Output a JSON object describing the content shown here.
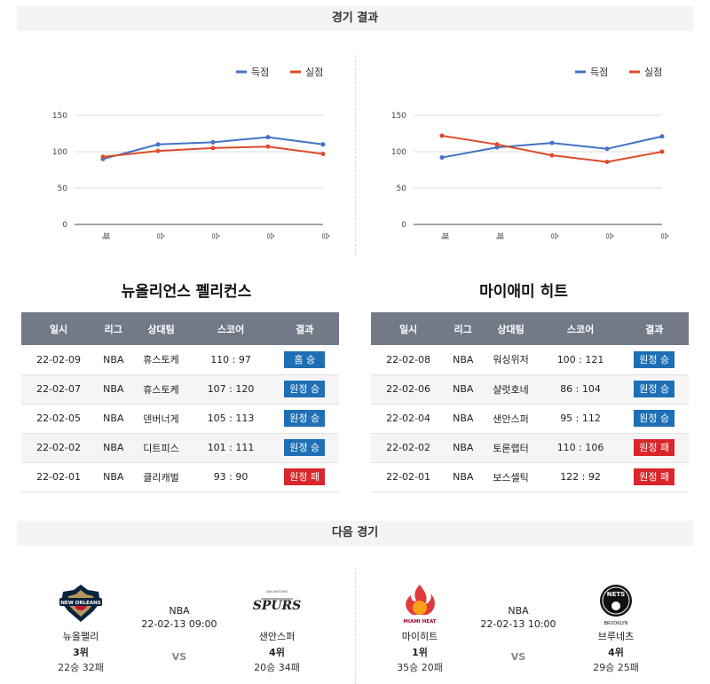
{
  "sections": {
    "results": "경기 결과",
    "next": "다음 경기"
  },
  "chart_legend": {
    "scored": "득점",
    "conceded": "실점"
  },
  "colors": {
    "scored": "#4472c4",
    "conceded": "#dd4b2b",
    "win": "#1e6fb5",
    "loss": "#d9262a",
    "header": "#737a87"
  },
  "chart_data": [
    {
      "type": "line",
      "categories": [
        "패",
        "승",
        "승",
        "승",
        "승"
      ],
      "series": [
        {
          "name": "득점",
          "values": [
            90,
            110,
            113,
            120,
            110
          ]
        },
        {
          "name": "실점",
          "values": [
            93,
            101,
            105,
            107,
            97
          ]
        }
      ],
      "ylim": [
        0,
        150
      ],
      "yticks": [
        0,
        50,
        100,
        150
      ],
      "legend": "top-right",
      "grid": true
    },
    {
      "type": "line",
      "categories": [
        "패",
        "패",
        "승",
        "승",
        "승"
      ],
      "series": [
        {
          "name": "득점",
          "values": [
            92,
            106,
            112,
            104,
            121
          ]
        },
        {
          "name": "실점",
          "values": [
            122,
            110,
            95,
            86,
            100
          ]
        }
      ],
      "ylim": [
        0,
        150
      ],
      "yticks": [
        0,
        50,
        100,
        150
      ],
      "legend": "top-right",
      "grid": true
    }
  ],
  "teams": [
    {
      "title": "뉴올리언스 펠리컨스",
      "headers": [
        "일시",
        "리그",
        "상대팀",
        "스코어",
        "결과"
      ],
      "rows": [
        {
          "date": "22-02-09",
          "league": "NBA",
          "opponent": "휴스토케",
          "score": "110 : 97",
          "result": "홈 승",
          "win": true
        },
        {
          "date": "22-02-07",
          "league": "NBA",
          "opponent": "휴스토케",
          "score": "107 : 120",
          "result": "원정 승",
          "win": true
        },
        {
          "date": "22-02-05",
          "league": "NBA",
          "opponent": "덴버너게",
          "score": "105 : 113",
          "result": "원정 승",
          "win": true
        },
        {
          "date": "22-02-02",
          "league": "NBA",
          "opponent": "디트피스",
          "score": "101 : 111",
          "result": "원정 승",
          "win": true
        },
        {
          "date": "22-02-01",
          "league": "NBA",
          "opponent": "클리캐벌",
          "score": "93 : 90",
          "result": "원정 패",
          "win": false
        }
      ]
    },
    {
      "title": "마이애미 히트",
      "headers": [
        "일시",
        "리그",
        "상대팀",
        "스코어",
        "결과"
      ],
      "rows": [
        {
          "date": "22-02-08",
          "league": "NBA",
          "opponent": "워싱위저",
          "score": "100 : 121",
          "result": "원정 승",
          "win": true
        },
        {
          "date": "22-02-06",
          "league": "NBA",
          "opponent": "샬럿호네",
          "score": "86 : 104",
          "result": "원정 승",
          "win": true
        },
        {
          "date": "22-02-04",
          "league": "NBA",
          "opponent": "샌안스퍼",
          "score": "95 : 112",
          "result": "원정 승",
          "win": true
        },
        {
          "date": "22-02-02",
          "league": "NBA",
          "opponent": "토론랩터",
          "score": "110 : 106",
          "result": "원정 패",
          "win": false
        },
        {
          "date": "22-02-01",
          "league": "NBA",
          "opponent": "보스셀틱",
          "score": "122 : 92",
          "result": "원정 패",
          "win": false
        }
      ]
    }
  ],
  "matches": [
    {
      "league": "NBA",
      "time": "22-02-13 09:00",
      "vs": "VS",
      "home": {
        "name": "뉴올펠리",
        "rank": "3위",
        "record": "22승 32패",
        "logo": "pelicans-logo",
        "logo_text": "NEW ORLEANS"
      },
      "away": {
        "name": "샌안스퍼",
        "rank": "4위",
        "record": "20승 34패",
        "logo": "spurs-logo",
        "logo_text": "SPURS"
      }
    },
    {
      "league": "NBA",
      "time": "22-02-13 10:00",
      "vs": "VS",
      "home": {
        "name": "마이히트",
        "rank": "1위",
        "record": "35승 20패",
        "logo": "heat-logo",
        "logo_text": "MIAMI HEAT"
      },
      "away": {
        "name": "브루네츠",
        "rank": "4위",
        "record": "29승 25패",
        "logo": "nets-logo",
        "logo_text": "NETS"
      }
    }
  ]
}
